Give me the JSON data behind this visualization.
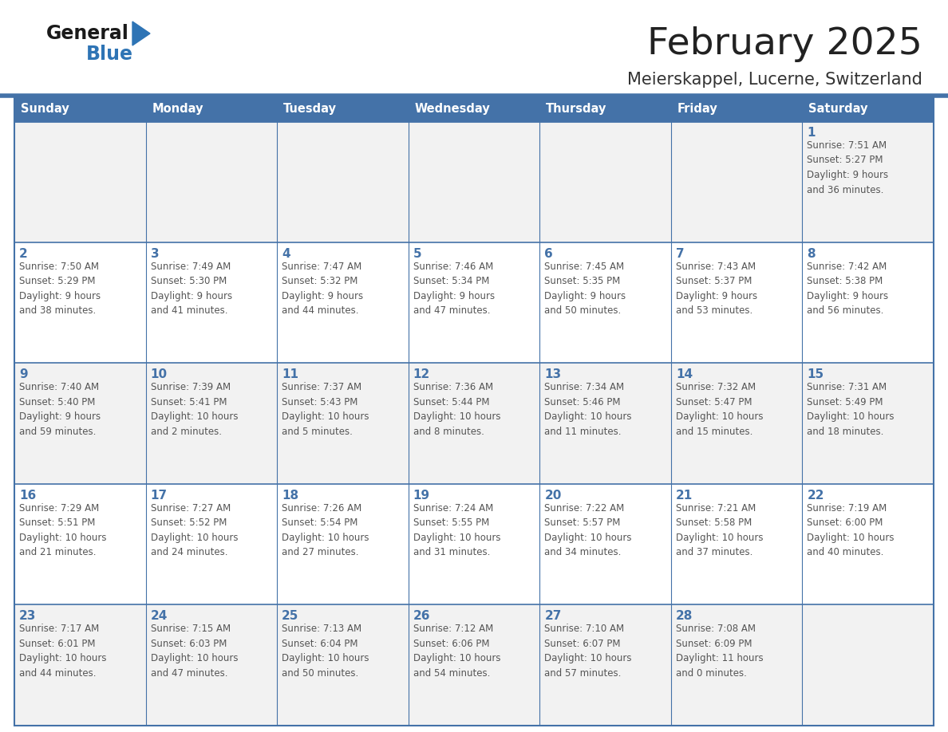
{
  "title": "February 2025",
  "subtitle": "Meierskappel, Lucerne, Switzerland",
  "days_of_week": [
    "Sunday",
    "Monday",
    "Tuesday",
    "Wednesday",
    "Thursday",
    "Friday",
    "Saturday"
  ],
  "header_bg": "#4472A8",
  "header_text": "#FFFFFF",
  "row_odd_bg": "#F2F2F2",
  "row_even_bg": "#FFFFFF",
  "border_color": "#4472A8",
  "day_number_color": "#4472A8",
  "text_color": "#555555",
  "title_color": "#222222",
  "subtitle_color": "#333333",
  "logo_general_color": "#1a1a1a",
  "logo_blue_color": "#2E74B5",
  "top_bar_color": "#4472A8",
  "calendar_data": [
    [
      {
        "day": null,
        "info": null
      },
      {
        "day": null,
        "info": null
      },
      {
        "day": null,
        "info": null
      },
      {
        "day": null,
        "info": null
      },
      {
        "day": null,
        "info": null
      },
      {
        "day": null,
        "info": null
      },
      {
        "day": 1,
        "info": "Sunrise: 7:51 AM\nSunset: 5:27 PM\nDaylight: 9 hours\nand 36 minutes."
      }
    ],
    [
      {
        "day": 2,
        "info": "Sunrise: 7:50 AM\nSunset: 5:29 PM\nDaylight: 9 hours\nand 38 minutes."
      },
      {
        "day": 3,
        "info": "Sunrise: 7:49 AM\nSunset: 5:30 PM\nDaylight: 9 hours\nand 41 minutes."
      },
      {
        "day": 4,
        "info": "Sunrise: 7:47 AM\nSunset: 5:32 PM\nDaylight: 9 hours\nand 44 minutes."
      },
      {
        "day": 5,
        "info": "Sunrise: 7:46 AM\nSunset: 5:34 PM\nDaylight: 9 hours\nand 47 minutes."
      },
      {
        "day": 6,
        "info": "Sunrise: 7:45 AM\nSunset: 5:35 PM\nDaylight: 9 hours\nand 50 minutes."
      },
      {
        "day": 7,
        "info": "Sunrise: 7:43 AM\nSunset: 5:37 PM\nDaylight: 9 hours\nand 53 minutes."
      },
      {
        "day": 8,
        "info": "Sunrise: 7:42 AM\nSunset: 5:38 PM\nDaylight: 9 hours\nand 56 minutes."
      }
    ],
    [
      {
        "day": 9,
        "info": "Sunrise: 7:40 AM\nSunset: 5:40 PM\nDaylight: 9 hours\nand 59 minutes."
      },
      {
        "day": 10,
        "info": "Sunrise: 7:39 AM\nSunset: 5:41 PM\nDaylight: 10 hours\nand 2 minutes."
      },
      {
        "day": 11,
        "info": "Sunrise: 7:37 AM\nSunset: 5:43 PM\nDaylight: 10 hours\nand 5 minutes."
      },
      {
        "day": 12,
        "info": "Sunrise: 7:36 AM\nSunset: 5:44 PM\nDaylight: 10 hours\nand 8 minutes."
      },
      {
        "day": 13,
        "info": "Sunrise: 7:34 AM\nSunset: 5:46 PM\nDaylight: 10 hours\nand 11 minutes."
      },
      {
        "day": 14,
        "info": "Sunrise: 7:32 AM\nSunset: 5:47 PM\nDaylight: 10 hours\nand 15 minutes."
      },
      {
        "day": 15,
        "info": "Sunrise: 7:31 AM\nSunset: 5:49 PM\nDaylight: 10 hours\nand 18 minutes."
      }
    ],
    [
      {
        "day": 16,
        "info": "Sunrise: 7:29 AM\nSunset: 5:51 PM\nDaylight: 10 hours\nand 21 minutes."
      },
      {
        "day": 17,
        "info": "Sunrise: 7:27 AM\nSunset: 5:52 PM\nDaylight: 10 hours\nand 24 minutes."
      },
      {
        "day": 18,
        "info": "Sunrise: 7:26 AM\nSunset: 5:54 PM\nDaylight: 10 hours\nand 27 minutes."
      },
      {
        "day": 19,
        "info": "Sunrise: 7:24 AM\nSunset: 5:55 PM\nDaylight: 10 hours\nand 31 minutes."
      },
      {
        "day": 20,
        "info": "Sunrise: 7:22 AM\nSunset: 5:57 PM\nDaylight: 10 hours\nand 34 minutes."
      },
      {
        "day": 21,
        "info": "Sunrise: 7:21 AM\nSunset: 5:58 PM\nDaylight: 10 hours\nand 37 minutes."
      },
      {
        "day": 22,
        "info": "Sunrise: 7:19 AM\nSunset: 6:00 PM\nDaylight: 10 hours\nand 40 minutes."
      }
    ],
    [
      {
        "day": 23,
        "info": "Sunrise: 7:17 AM\nSunset: 6:01 PM\nDaylight: 10 hours\nand 44 minutes."
      },
      {
        "day": 24,
        "info": "Sunrise: 7:15 AM\nSunset: 6:03 PM\nDaylight: 10 hours\nand 47 minutes."
      },
      {
        "day": 25,
        "info": "Sunrise: 7:13 AM\nSunset: 6:04 PM\nDaylight: 10 hours\nand 50 minutes."
      },
      {
        "day": 26,
        "info": "Sunrise: 7:12 AM\nSunset: 6:06 PM\nDaylight: 10 hours\nand 54 minutes."
      },
      {
        "day": 27,
        "info": "Sunrise: 7:10 AM\nSunset: 6:07 PM\nDaylight: 10 hours\nand 57 minutes."
      },
      {
        "day": 28,
        "info": "Sunrise: 7:08 AM\nSunset: 6:09 PM\nDaylight: 11 hours\nand 0 minutes."
      },
      {
        "day": null,
        "info": null
      }
    ]
  ],
  "fig_width": 11.88,
  "fig_height": 9.18,
  "dpi": 100
}
